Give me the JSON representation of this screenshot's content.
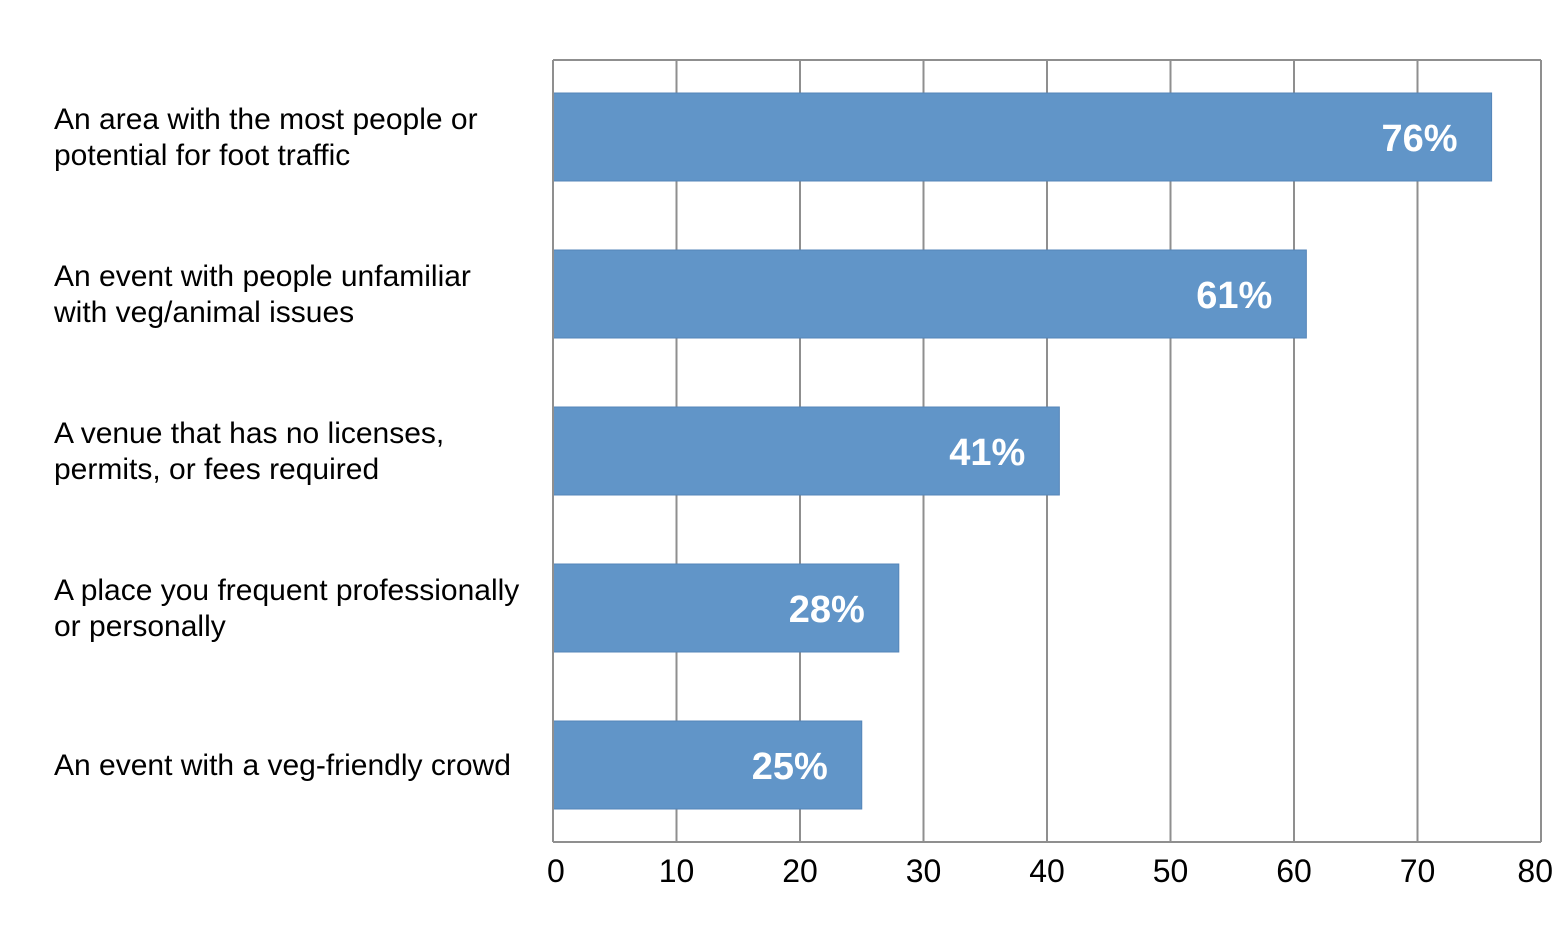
{
  "chart_data": {
    "type": "bar",
    "orientation": "horizontal",
    "categories": [
      [
        "An area with the most people or",
        "potential for foot traffic"
      ],
      [
        "An event with people unfamiliar",
        "with veg/animal issues"
      ],
      [
        "A venue that has no licenses,",
        "permits, or fees required"
      ],
      [
        "A place you frequent professionally",
        "or personally"
      ],
      [
        "An event with a veg-friendly crowd"
      ]
    ],
    "values": [
      76,
      61,
      41,
      28,
      25
    ],
    "data_labels": [
      "76%",
      "61%",
      "41%",
      "28%",
      "25%"
    ],
    "xlim": [
      0,
      80
    ],
    "x_ticks": [
      "0",
      "10",
      "20",
      "30",
      "40",
      "50",
      "60",
      "70",
      "80"
    ],
    "grid": true,
    "colors": {
      "bar": "#6195c8",
      "grid": "#8f8f8f",
      "axis": "#8f8f8f"
    }
  }
}
